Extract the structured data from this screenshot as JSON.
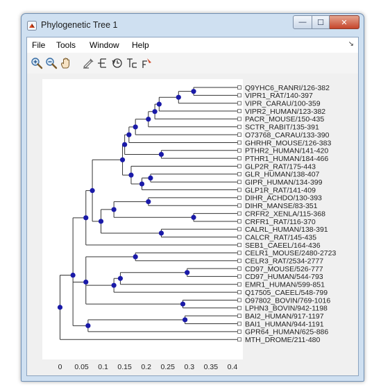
{
  "window": {
    "title": "Phylogenetic Tree 1",
    "min_glyph": "—",
    "max_glyph": "☐",
    "close_glyph": "✕"
  },
  "menu": {
    "items": [
      "File",
      "Tools",
      "Window",
      "Help"
    ],
    "dock_glyph": "↘"
  },
  "toolbar": {
    "icons": [
      "zoom-in-icon",
      "zoom-out-icon",
      "pan-hand-icon",
      "inspect-icon",
      "collapse-expand-icon",
      "rotate-branch-icon",
      "rename-icon",
      "prune-icon"
    ]
  },
  "colors": {
    "node": "#1a1aa8",
    "branch": "#333333",
    "plot_bg": "#ffffff",
    "figure_bg": "#f0f0f0"
  },
  "chart_data": {
    "type": "dendrogram",
    "x_ticks": [
      "0",
      "0.05",
      "0.1",
      "0.15",
      "0.2",
      "0.25",
      "0.3",
      "0.35",
      "0.4"
    ],
    "xlim": [
      -0.02,
      0.42
    ],
    "leaves": [
      "Q9YHC6_RANRI/126-382",
      "VIPR1_RAT/140-397",
      "VIPR_CARAU/100-359",
      "VIPR2_HUMAN/123-382",
      "PACR_MOUSE/150-435",
      "SCTR_RABIT/135-391",
      "O73768_CARAU/133-390",
      "GHRHR_MOUSE/126-383",
      "PTHR2_HUMAN/141-420",
      "PTHR1_HUMAN/184-466",
      "GLP2R_RAT/175-443",
      "GLR_HUMAN/138-407",
      "GIPR_HUMAN/134-399",
      "GLP1R_RAT/141-409",
      "DIHR_ACHDO/130-393",
      "DIHR_MANSE/83-351",
      "CRFR2_XENLA/115-368",
      "CRFR1_RAT/116-370",
      "CALRL_HUMAN/138-391",
      "CALCR_RAT/145-435",
      "SEB1_CAEEL/164-436",
      "CELR1_MOUSE/2480-2723",
      "CELR3_RAT/2534-2777",
      "CD97_MOUSE/526-777",
      "CD97_HUMAN/544-793",
      "EMR1_HUMAN/599-851",
      "Q17505_CAEEL/548-799",
      "O97802_BOVIN/769-1016",
      "LPHN3_BOVIN/942-1198",
      "BAI2_HUMAN/917-1197",
      "BAI1_HUMAN/944-1191",
      "GPR64_HUMAN/625-886",
      "MTH_DROME/211-480"
    ],
    "nodes": [
      {
        "id": "n1",
        "x": 0.31,
        "children": [
          0,
          1
        ]
      },
      {
        "id": "n2",
        "x": 0.275,
        "children": [
          "n1",
          2
        ]
      },
      {
        "id": "n3",
        "x": 0.23,
        "children": [
          "n2",
          3
        ]
      },
      {
        "id": "n4",
        "x": 0.22,
        "children": [
          "n3",
          4
        ]
      },
      {
        "id": "n5",
        "x": 0.205,
        "children": [
          "n4",
          5
        ]
      },
      {
        "id": "n6",
        "x": 0.175,
        "children": [
          "n5",
          6
        ]
      },
      {
        "id": "n7",
        "x": 0.16,
        "children": [
          "n6",
          7
        ]
      },
      {
        "id": "n8",
        "x": 0.235,
        "children": [
          8,
          9
        ]
      },
      {
        "id": "n9",
        "x": 0.15,
        "children": [
          "n7",
          "n8"
        ]
      },
      {
        "id": "n10",
        "x": 0.21,
        "children": [
          11,
          12
        ]
      },
      {
        "id": "n11",
        "x": 0.19,
        "children": [
          "n10",
          13
        ]
      },
      {
        "id": "n12",
        "x": 0.165,
        "children": [
          10,
          "n11"
        ]
      },
      {
        "id": "n13",
        "x": 0.145,
        "children": [
          "n9",
          "n12"
        ]
      },
      {
        "id": "n14",
        "x": 0.205,
        "children": [
          14,
          15
        ]
      },
      {
        "id": "n15",
        "x": 0.31,
        "children": [
          16,
          17
        ]
      },
      {
        "id": "n16",
        "x": 0.125,
        "children": [
          "n14",
          "n15"
        ]
      },
      {
        "id": "n17",
        "x": 0.235,
        "children": [
          18,
          19
        ]
      },
      {
        "id": "n18",
        "x": 0.095,
        "children": [
          "n16",
          "n17"
        ]
      },
      {
        "id": "n19",
        "x": 0.075,
        "children": [
          "n13",
          "n18"
        ]
      },
      {
        "id": "n20",
        "x": 0.06,
        "children": [
          "n19",
          20
        ]
      },
      {
        "id": "n21",
        "x": 0.175,
        "children": [
          21,
          22
        ]
      },
      {
        "id": "n22",
        "x": 0.295,
        "children": [
          23,
          24
        ]
      },
      {
        "id": "n23",
        "x": 0.14,
        "children": [
          "n22",
          25
        ]
      },
      {
        "id": "n24",
        "x": 0.125,
        "children": [
          "n23",
          26
        ]
      },
      {
        "id": "n25",
        "x": 0.285,
        "children": [
          27,
          28
        ]
      },
      {
        "id": "n26",
        "x": 0.06,
        "children": [
          "n21",
          "n24",
          "n25"
        ]
      },
      {
        "id": "n27",
        "x": 0.29,
        "children": [
          29,
          30
        ]
      },
      {
        "id": "n28",
        "x": 0.065,
        "children": [
          "n27",
          31
        ]
      },
      {
        "id": "n29",
        "x": 0.03,
        "children": [
          "n20",
          "n26",
          "n28"
        ]
      },
      {
        "id": "n30",
        "x": 0.0,
        "children": [
          "n29",
          32
        ]
      }
    ]
  }
}
